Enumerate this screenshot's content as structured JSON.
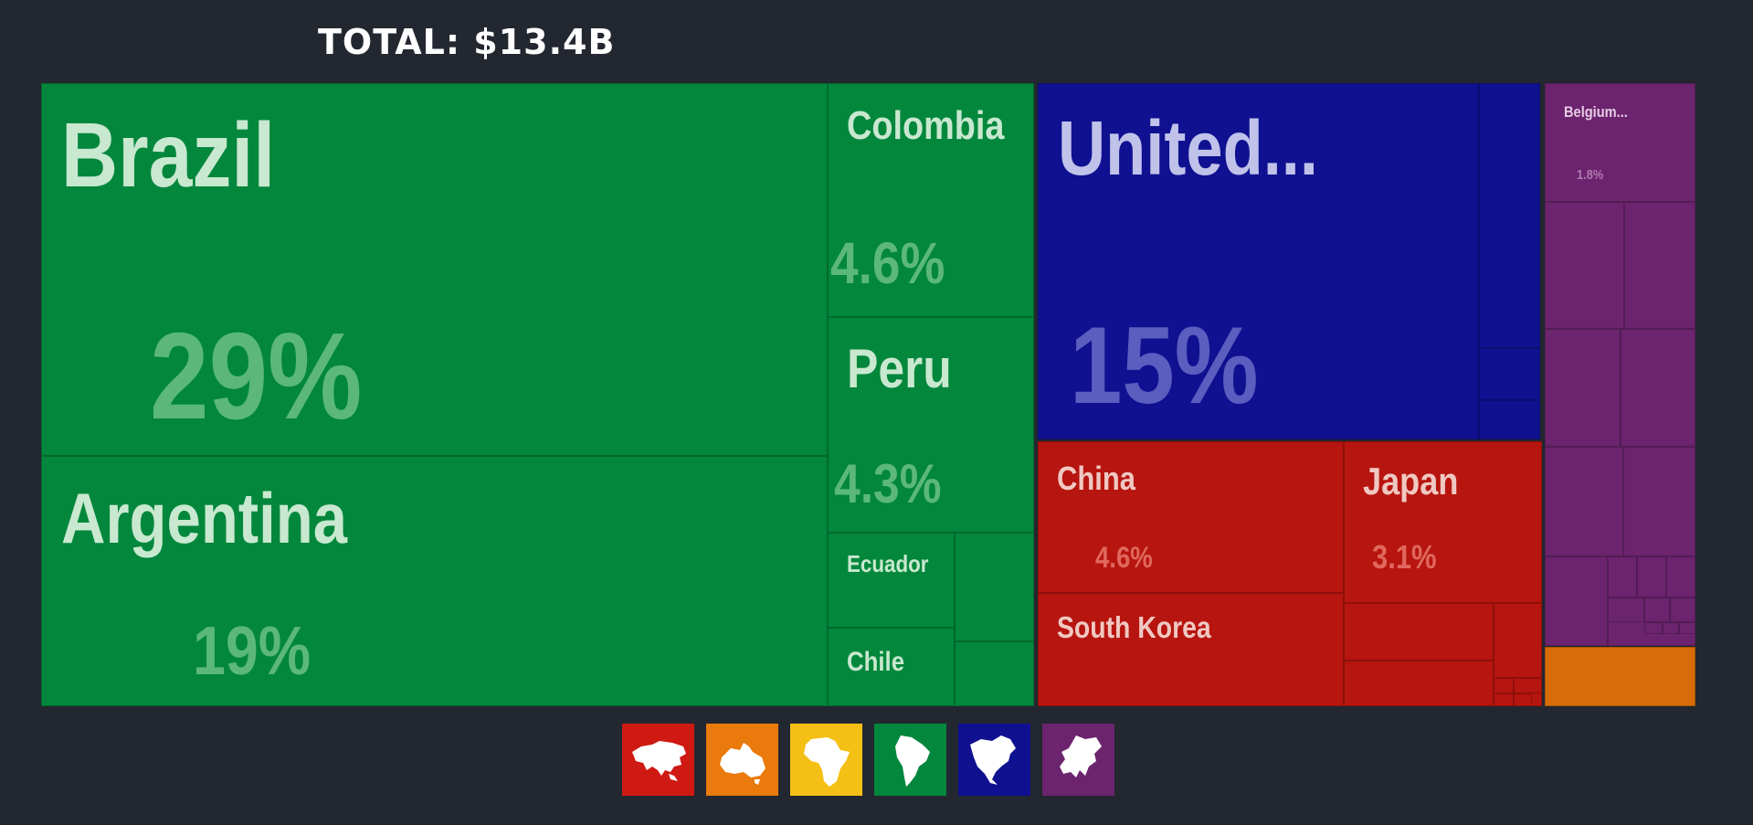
{
  "header": {
    "total": "TOTAL: $13.4B"
  },
  "colors": {
    "South America": "#02873c",
    "North America": "#0f1191",
    "Asia": "#b7150f",
    "Europe": "#6b246d",
    "Oceania": "#d66d08",
    "Africa": "#f5c015"
  },
  "legend": [
    {
      "name": "asia-icon",
      "continent": "Asia",
      "color": "#ce1a12"
    },
    {
      "name": "oceania-icon",
      "continent": "Oceania",
      "color": "#e97a0b"
    },
    {
      "name": "africa-icon",
      "continent": "Africa",
      "color": "#f5c015"
    },
    {
      "name": "south-america-icon",
      "continent": "South America",
      "color": "#02873c"
    },
    {
      "name": "north-america-icon",
      "continent": "North America",
      "color": "#0f1191"
    },
    {
      "name": "europe-icon",
      "continent": "Europe",
      "color": "#6b246d"
    }
  ],
  "chart_data": {
    "type": "treemap",
    "title": "TOTAL: $13.4B",
    "unit": "share of total (%)",
    "items": [
      {
        "label": "Brazil",
        "value": 29,
        "pct_label": "29%",
        "continent": "South America"
      },
      {
        "label": "Argentina",
        "value": 19,
        "pct_label": "19%",
        "continent": "South America"
      },
      {
        "label": "Colombia",
        "value": 4.6,
        "pct_label": "4.6%",
        "continent": "South America"
      },
      {
        "label": "Peru",
        "value": 4.3,
        "pct_label": "4.3%",
        "continent": "South America"
      },
      {
        "label": "Ecuador",
        "value": 2.3,
        "pct_label": "",
        "continent": "South America"
      },
      {
        "label": "Chile",
        "value": 1.8,
        "pct_label": "",
        "continent": "South America"
      },
      {
        "label": "",
        "value": 2.5,
        "pct_label": "",
        "continent": "South America"
      },
      {
        "label": "",
        "value": 1.3,
        "pct_label": "",
        "continent": "South America"
      },
      {
        "label": "United...",
        "value": 15,
        "pct_label": "15%",
        "continent": "North America"
      },
      {
        "label": "",
        "value": 1.0,
        "pct_label": "",
        "continent": "North America"
      },
      {
        "label": "",
        "value": 0.4,
        "pct_label": "",
        "continent": "North America"
      },
      {
        "label": "",
        "value": 0.3,
        "pct_label": "",
        "continent": "North America"
      },
      {
        "label": "China",
        "value": 4.6,
        "pct_label": "4.6%",
        "continent": "Asia"
      },
      {
        "label": "South Korea",
        "value": 3.3,
        "pct_label": "",
        "continent": "Asia"
      },
      {
        "label": "Japan",
        "value": 3.1,
        "pct_label": "3.1%",
        "continent": "Asia"
      },
      {
        "label": "",
        "value": 1.0,
        "pct_label": "",
        "continent": "Asia"
      },
      {
        "label": "",
        "value": 0.6,
        "pct_label": "",
        "continent": "Asia"
      },
      {
        "label": "",
        "value": 0.3,
        "pct_label": "",
        "continent": "Asia"
      },
      {
        "label": "",
        "value": 0.3,
        "pct_label": "",
        "continent": "Asia"
      },
      {
        "label": "Belgium...",
        "value": 1.8,
        "pct_label": "1.8%",
        "continent": "Europe"
      },
      {
        "label": "",
        "value": 1.0,
        "pct_label": "",
        "continent": "Europe"
      },
      {
        "label": "",
        "value": 0.9,
        "pct_label": "",
        "continent": "Europe"
      },
      {
        "label": "",
        "value": 0.9,
        "pct_label": "",
        "continent": "Europe"
      },
      {
        "label": "",
        "value": 0.9,
        "pct_label": "",
        "continent": "Europe"
      },
      {
        "label": "",
        "value": 0.8,
        "pct_label": "",
        "continent": "Europe"
      },
      {
        "label": "",
        "value": 0.7,
        "pct_label": "",
        "continent": "Europe"
      },
      {
        "label": "",
        "value": 0.6,
        "pct_label": "",
        "continent": "Europe"
      },
      {
        "label": "",
        "value": 0.9,
        "pct_label": "",
        "continent": "Europe"
      },
      {
        "label": "",
        "value": 1.2,
        "pct_label": "",
        "continent": "Oceania"
      }
    ]
  }
}
